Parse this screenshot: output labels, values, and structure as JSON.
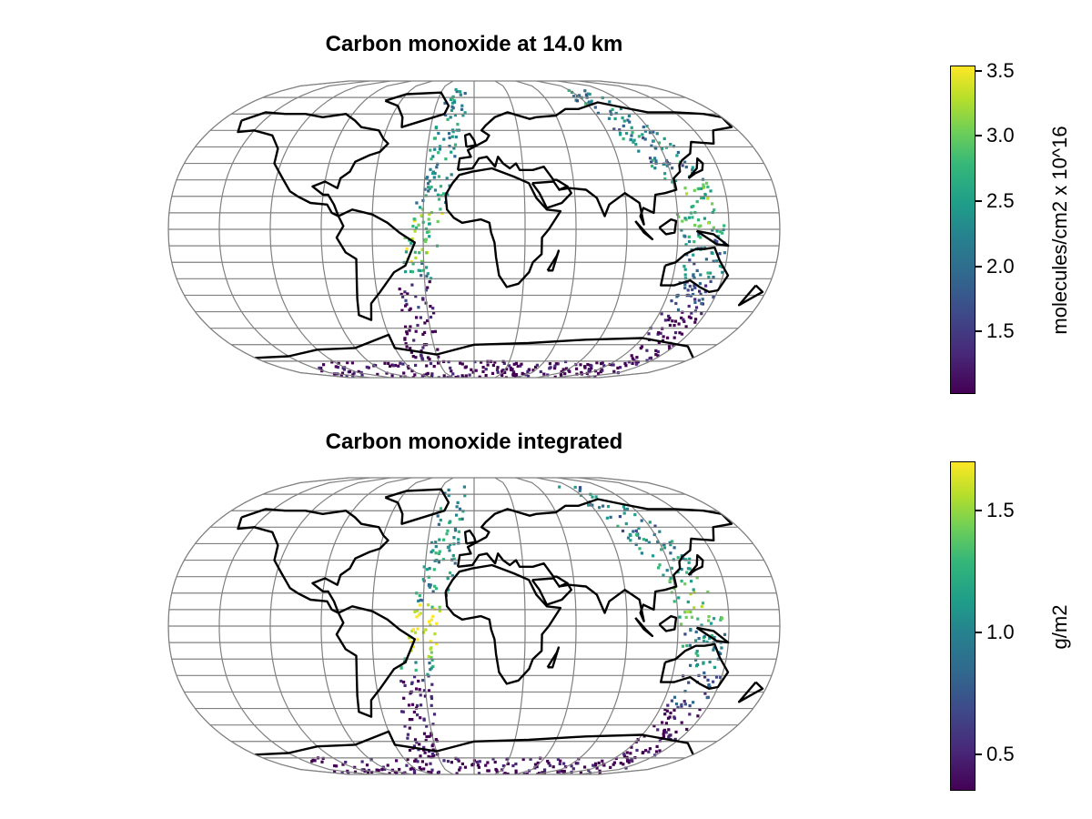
{
  "panels": [
    {
      "title": "Carbon monoxide at 14.0 km",
      "colorbar": {
        "label": "molecules/cm2 x 10^16",
        "ticks": [
          "3.5",
          "3.0",
          "2.5",
          "2.0",
          "1.5"
        ],
        "tick_values": [
          3.5,
          3.0,
          2.5,
          2.0,
          1.5
        ],
        "range": [
          1.02,
          3.54
        ],
        "colormap": "viridis"
      }
    },
    {
      "title": "Carbon monoxide integrated",
      "colorbar": {
        "label": "g/m2",
        "ticks": [
          "1.5",
          "1.0",
          "0.5"
        ],
        "tick_values": [
          1.5,
          1.0,
          0.5
        ],
        "range": [
          0.35,
          1.7
        ],
        "colormap": "viridis"
      }
    }
  ],
  "colors": {
    "graticule": "#808080",
    "coastline": "#000000",
    "viridis_low": "#440154",
    "viridis_mid": "#21918c",
    "viridis_high": "#fde725"
  }
}
